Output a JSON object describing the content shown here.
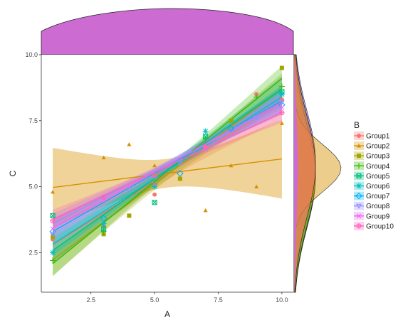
{
  "chart_data": {
    "type": "scatter",
    "title": "",
    "xlabel": "A",
    "ylabel": "C",
    "xlim": [
      0.55,
      10.45
    ],
    "ylim": [
      1.0,
      10.0
    ],
    "x_ticks": [
      "2.5",
      "5.0",
      "7.5",
      "10.0"
    ],
    "y_ticks": [
      "2.5",
      "5.0",
      "7.5",
      "10.0"
    ],
    "grid": false,
    "legend": {
      "title": "B",
      "position": "right"
    },
    "fit": "linear regression with confidence band per group",
    "marginals": [
      "density of A (top)",
      "density of C per group (right)"
    ],
    "series": [
      {
        "name": "Group1",
        "color": "#F8766D",
        "marker": "circle",
        "slope": 0.6,
        "intercept": 2.2,
        "band": 0.6,
        "points": [
          [
            1,
            3.0
          ],
          [
            3,
            3.5
          ],
          [
            5,
            4.7
          ],
          [
            7,
            6.5
          ],
          [
            9,
            8.5
          ],
          [
            10,
            8.3
          ]
        ]
      },
      {
        "name": "Group2",
        "color": "#D89000",
        "marker": "triangle",
        "slope": 0.12,
        "intercept": 4.85,
        "band": 1.4,
        "points": [
          [
            1,
            4.8
          ],
          [
            3,
            6.1
          ],
          [
            4,
            6.6
          ],
          [
            5,
            5.8
          ],
          [
            7,
            4.1
          ],
          [
            8,
            5.8
          ],
          [
            9,
            5.0
          ],
          [
            10,
            7.4
          ]
        ]
      },
      {
        "name": "Group3",
        "color": "#A3A500",
        "marker": "square",
        "slope": 0.72,
        "intercept": 1.5,
        "band": 0.55,
        "points": [
          [
            1,
            3.1
          ],
          [
            3,
            3.2
          ],
          [
            4,
            3.9
          ],
          [
            6,
            5.3
          ],
          [
            8,
            7.5
          ],
          [
            10,
            9.5
          ]
        ]
      },
      {
        "name": "Group4",
        "color": "#39B600",
        "marker": "plus",
        "slope": 0.78,
        "intercept": 1.3,
        "band": 0.45,
        "points": [
          [
            1,
            2.2
          ],
          [
            3,
            3.3
          ],
          [
            5,
            5.1
          ],
          [
            7,
            6.8
          ],
          [
            9,
            8.4
          ],
          [
            10,
            8.8
          ]
        ]
      },
      {
        "name": "Group5",
        "color": "#00BF7D",
        "marker": "square-cross",
        "slope": 0.68,
        "intercept": 1.9,
        "band": 0.45,
        "points": [
          [
            1,
            3.9
          ],
          [
            3,
            3.4
          ],
          [
            5,
            4.4
          ],
          [
            7,
            6.9
          ],
          [
            10,
            8.6
          ]
        ]
      },
      {
        "name": "Group6",
        "color": "#00BFC4",
        "marker": "asterisk",
        "slope": 0.62,
        "intercept": 2.2,
        "band": 0.4,
        "points": [
          [
            1,
            2.5
          ],
          [
            3,
            3.6
          ],
          [
            5,
            5.0
          ],
          [
            7,
            7.1
          ],
          [
            10,
            8.5
          ]
        ]
      },
      {
        "name": "Group7",
        "color": "#00B0F6",
        "marker": "diamond",
        "slope": 0.55,
        "intercept": 2.75,
        "band": 0.45,
        "points": [
          [
            1,
            3.3
          ],
          [
            3,
            3.8
          ],
          [
            6,
            5.5
          ],
          [
            8,
            7.2
          ],
          [
            10,
            8.1
          ]
        ]
      },
      {
        "name": "Group8",
        "color": "#9590FF",
        "marker": "triangle-down",
        "slope": 0.5,
        "intercept": 3.1,
        "band": 0.35,
        "points": [
          [
            1,
            3.2
          ],
          [
            4,
            4.9
          ],
          [
            6,
            5.9
          ],
          [
            9,
            7.6
          ],
          [
            10,
            8.2
          ]
        ]
      },
      {
        "name": "Group9",
        "color": "#E76BF3",
        "marker": "x",
        "slope": 0.53,
        "intercept": 2.9,
        "band": 0.35,
        "points": [
          [
            1,
            3.4
          ],
          [
            3,
            4.5
          ],
          [
            5,
            5.1
          ],
          [
            7,
            6.4
          ],
          [
            10,
            8.0
          ]
        ]
      },
      {
        "name": "Group10",
        "color": "#FF62BC",
        "marker": "circle-plus",
        "slope": 0.45,
        "intercept": 3.3,
        "band": 0.35,
        "points": [
          [
            1,
            3.7
          ],
          [
            3,
            4.6
          ],
          [
            5,
            5.4
          ],
          [
            7,
            6.5
          ],
          [
            10,
            7.8
          ]
        ]
      }
    ]
  }
}
